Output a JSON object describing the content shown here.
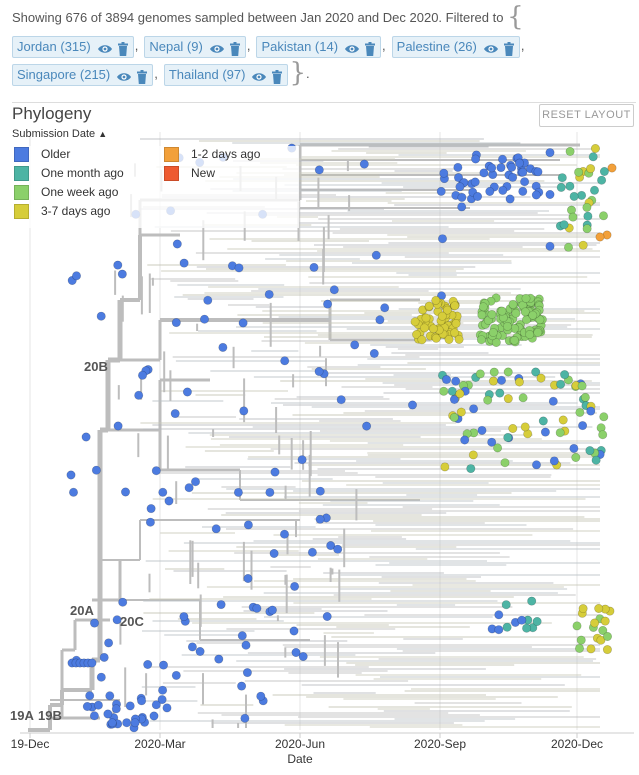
{
  "summary": {
    "prefix": "Showing 676 of 3894 genomes sampled between Jan 2020 and Dec 2020. Filtered to",
    "open_brace": "{",
    "close_brace": "}",
    "end_mark": ".",
    "separator": ",",
    "filters": [
      {
        "label": "Jordan (315)"
      },
      {
        "label": "Nepal (9)"
      },
      {
        "label": "Pakistan (14)"
      },
      {
        "label": "Palestine (26)"
      },
      {
        "label": "Singapore (215)"
      },
      {
        "label": "Thailand (97)"
      }
    ]
  },
  "panel": {
    "title": "Phylogeny",
    "reset_label": "RESET LAYOUT",
    "color_by_label": "Submission Date",
    "legend": [
      {
        "label": "Older",
        "color": "#4C7BE0"
      },
      {
        "label": "One month ago",
        "color": "#4DB4A4"
      },
      {
        "label": "One week ago",
        "color": "#8BD06A"
      },
      {
        "label": "3-7 days ago",
        "color": "#D6CD3A"
      },
      {
        "label": "1-2 days ago",
        "color": "#F2A03A"
      },
      {
        "label": "New",
        "color": "#EE5A30"
      }
    ]
  },
  "chart_data": {
    "type": "scatter",
    "title": "Phylogeny",
    "xlabel": "Date",
    "ylabel": "",
    "x_ticks": [
      "19-Dec",
      "2020-Mar",
      "2020-Jun",
      "2020-Sep",
      "2020-Dec"
    ],
    "x_range": [
      "2019-12-01",
      "2020-12-31"
    ],
    "grid": true,
    "clade_labels": [
      "19A",
      "19B",
      "20A",
      "20B",
      "20C"
    ],
    "color_by": "Submission Date",
    "categories": [
      "Older",
      "One month ago",
      "One week ago",
      "3-7 days ago",
      "1-2 days ago",
      "New"
    ],
    "tip_counts_shown": 676,
    "tip_counts_total": 3894
  }
}
